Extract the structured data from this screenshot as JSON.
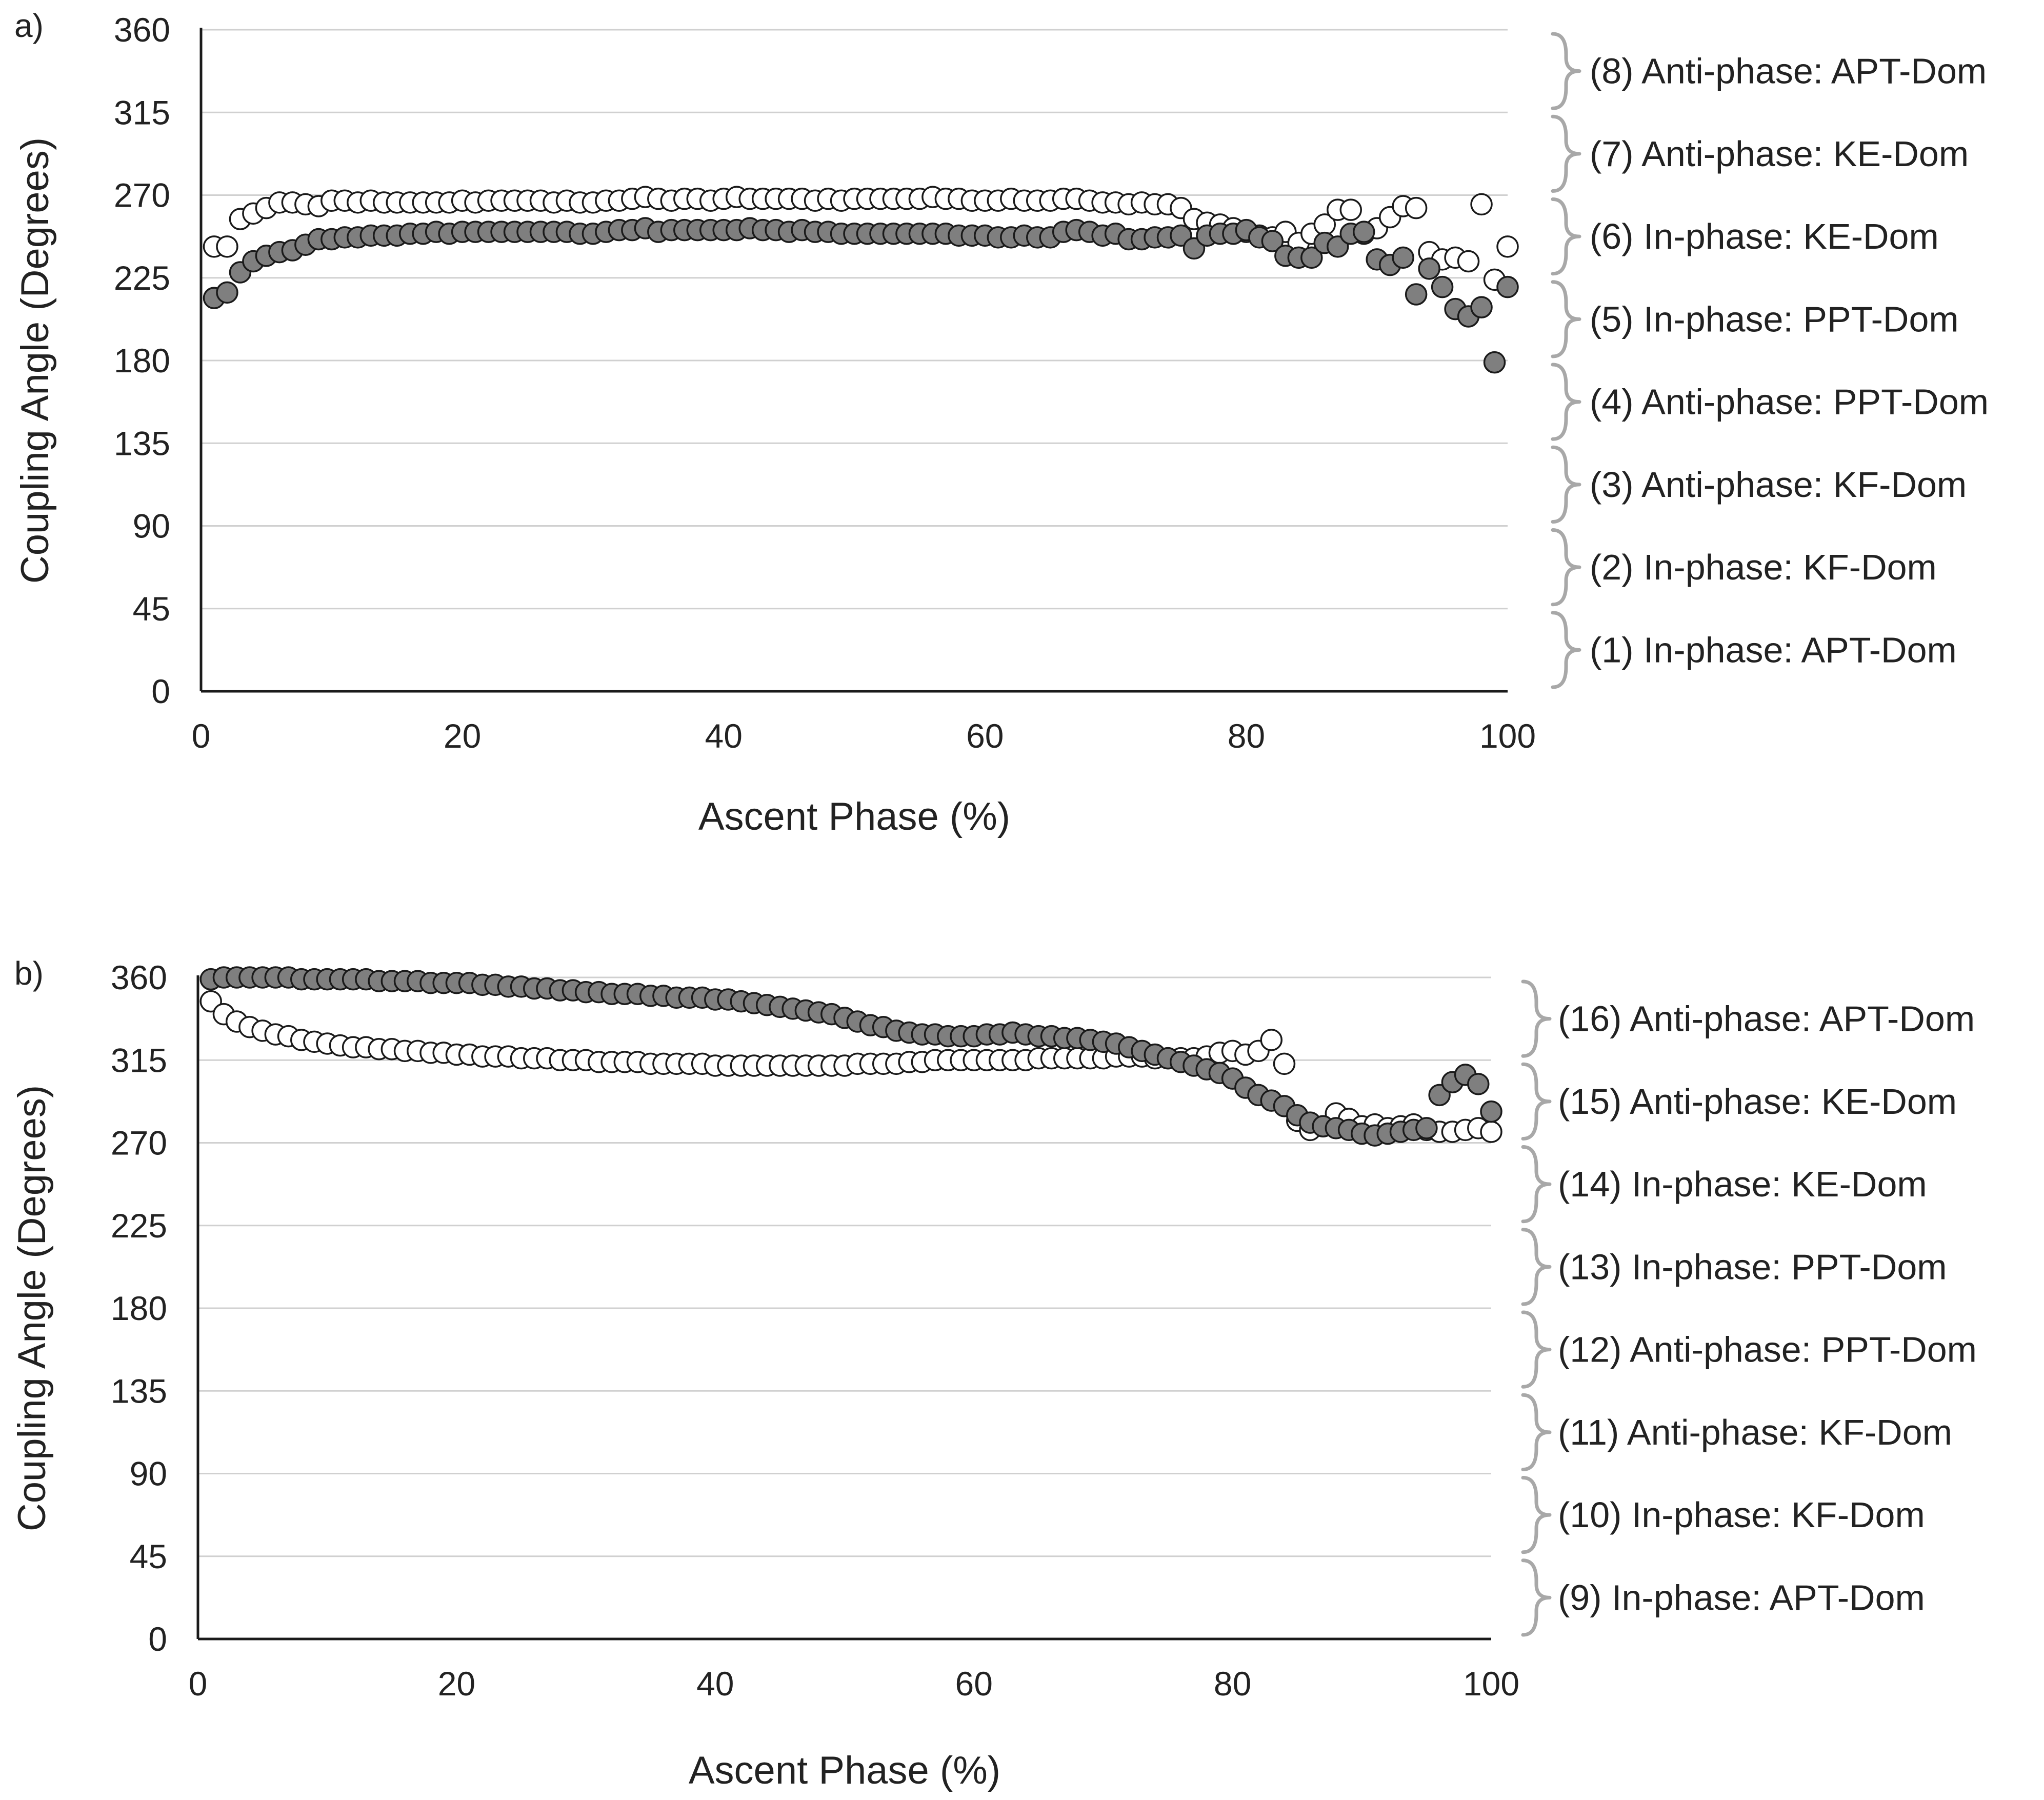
{
  "chart_data": [
    {
      "panel_label": "a)",
      "type": "scatter",
      "title": "",
      "xlabel": "Ascent Phase (%)",
      "ylabel": "Coupling Angle (Degrees)",
      "xlim": [
        0,
        100
      ],
      "ylim": [
        0,
        360
      ],
      "xticks": [
        "0",
        "20",
        "40",
        "60",
        "80",
        "100"
      ],
      "yticks": [
        "0",
        "45",
        "90",
        "135",
        "180",
        "225",
        "270",
        "315",
        "360"
      ],
      "grid": "horizontal",
      "legend": "none",
      "x": [
        1,
        2,
        3,
        4,
        5,
        6,
        7,
        8,
        9,
        10,
        11,
        12,
        13,
        14,
        15,
        16,
        17,
        18,
        19,
        20,
        21,
        22,
        23,
        24,
        25,
        26,
        27,
        28,
        29,
        30,
        31,
        32,
        33,
        34,
        35,
        36,
        37,
        38,
        39,
        40,
        41,
        42,
        43,
        44,
        45,
        46,
        47,
        48,
        49,
        50,
        51,
        52,
        53,
        54,
        55,
        56,
        57,
        58,
        59,
        60,
        61,
        62,
        63,
        64,
        65,
        66,
        67,
        68,
        69,
        70,
        71,
        72,
        73,
        74,
        75,
        76,
        77,
        78,
        79,
        80,
        81,
        82,
        83,
        84,
        85,
        86,
        87,
        88,
        89,
        90,
        91,
        92,
        93,
        94,
        95,
        96,
        97,
        98,
        99,
        100
      ],
      "series": [
        {
          "name": "open circles",
          "marker": "open",
          "values": [
            242,
            242,
            257,
            260,
            263,
            266,
            266,
            265,
            264,
            267,
            267,
            266,
            267,
            266,
            266,
            266,
            266,
            266,
            266,
            267,
            266,
            267,
            267,
            267,
            267,
            267,
            266,
            267,
            266,
            266,
            267,
            267,
            268,
            269,
            268,
            267,
            268,
            268,
            267,
            268,
            269,
            268,
            268,
            268,
            268,
            268,
            267,
            268,
            267,
            268,
            268,
            268,
            268,
            268,
            268,
            269,
            268,
            268,
            267,
            267,
            267,
            268,
            267,
            267,
            267,
            268,
            268,
            267,
            266,
            266,
            265,
            266,
            265,
            265,
            263,
            257,
            255,
            254,
            252,
            250,
            248,
            247,
            250,
            244,
            249,
            254,
            262,
            262,
            249,
            252,
            258,
            264,
            263,
            239,
            235,
            236,
            234,
            265,
            224,
            242
          ]
        },
        {
          "name": "filled circles",
          "marker": "filled",
          "values": [
            214,
            217,
            228,
            234,
            237,
            239,
            240,
            243,
            246,
            246,
            247,
            247,
            248,
            248,
            248,
            249,
            249,
            250,
            249,
            250,
            250,
            250,
            250,
            250,
            250,
            250,
            250,
            250,
            249,
            249,
            250,
            251,
            251,
            252,
            250,
            251,
            251,
            251,
            251,
            251,
            251,
            252,
            251,
            251,
            250,
            251,
            250,
            250,
            249,
            249,
            249,
            249,
            249,
            249,
            249,
            249,
            249,
            248,
            248,
            248,
            247,
            247,
            248,
            247,
            247,
            250,
            251,
            250,
            248,
            249,
            246,
            246,
            247,
            247,
            248,
            241,
            248,
            249,
            249,
            251,
            247,
            245,
            237,
            236,
            236,
            244,
            242,
            249,
            250,
            235,
            232,
            236,
            216,
            230,
            220,
            208,
            204,
            209,
            179,
            220
          ]
        }
      ],
      "zones": [
        "(1) In-phase: APT-Dom",
        "(2) In-phase: KF-Dom",
        "(3) Anti-phase: KF-Dom",
        "(4) Anti-phase: PPT-Dom",
        "(5) In-phase: PPT-Dom",
        "(6) In-phase: KE-Dom",
        "(7) Anti-phase: KE-Dom",
        "(8) Anti-phase: APT-Dom"
      ]
    },
    {
      "panel_label": "b)",
      "type": "scatter",
      "title": "",
      "xlabel": "Ascent Phase (%)",
      "ylabel": "Coupling Angle (Degrees)",
      "xlim": [
        0,
        100
      ],
      "ylim": [
        0,
        360
      ],
      "xticks": [
        "0",
        "20",
        "40",
        "60",
        "80",
        "100"
      ],
      "yticks": [
        "0",
        "45",
        "90",
        "135",
        "180",
        "225",
        "270",
        "315",
        "360"
      ],
      "grid": "horizontal",
      "legend": "none",
      "x": [
        1,
        2,
        3,
        4,
        5,
        6,
        7,
        8,
        9,
        10,
        11,
        12,
        13,
        14,
        15,
        16,
        17,
        18,
        19,
        20,
        21,
        22,
        23,
        24,
        25,
        26,
        27,
        28,
        29,
        30,
        31,
        32,
        33,
        34,
        35,
        36,
        37,
        38,
        39,
        40,
        41,
        42,
        43,
        44,
        45,
        46,
        47,
        48,
        49,
        50,
        51,
        52,
        53,
        54,
        55,
        56,
        57,
        58,
        59,
        60,
        61,
        62,
        63,
        64,
        65,
        66,
        67,
        68,
        69,
        70,
        71,
        72,
        73,
        74,
        75,
        76,
        77,
        78,
        79,
        80,
        81,
        82,
        83,
        84,
        85,
        86,
        87,
        88,
        89,
        90,
        91,
        92,
        93,
        94,
        95,
        96,
        97,
        98,
        99,
        100
      ],
      "series": [
        {
          "name": "open circles",
          "marker": "open",
          "values": [
            347,
            340,
            336,
            333,
            331,
            329,
            328,
            326,
            325,
            324,
            323,
            322,
            322,
            321,
            321,
            320,
            320,
            319,
            319,
            318,
            318,
            317,
            317,
            317,
            316,
            316,
            316,
            315,
            315,
            315,
            314,
            314,
            314,
            314,
            313,
            313,
            313,
            313,
            313,
            312,
            312,
            312,
            312,
            312,
            312,
            312,
            312,
            312,
            312,
            312,
            313,
            313,
            313,
            313,
            314,
            314,
            315,
            315,
            315,
            315,
            315,
            315,
            315,
            315,
            316,
            316,
            316,
            316,
            316,
            316,
            317,
            317,
            317,
            316,
            316,
            316,
            316,
            317,
            319,
            320,
            318,
            320,
            326,
            313,
            282,
            277,
            279,
            286,
            283,
            279,
            280,
            278,
            279,
            280,
            277,
            276,
            276,
            277,
            278,
            276
          ]
        },
        {
          "name": "filled circles",
          "marker": "filled",
          "values": [
            359,
            360,
            360,
            360,
            360,
            360,
            360,
            359,
            359,
            359,
            359,
            359,
            359,
            358,
            358,
            358,
            358,
            357,
            357,
            357,
            357,
            356,
            356,
            355,
            355,
            354,
            354,
            353,
            353,
            352,
            352,
            351,
            351,
            351,
            350,
            350,
            349,
            349,
            349,
            348,
            348,
            347,
            346,
            345,
            344,
            343,
            342,
            341,
            340,
            338,
            336,
            334,
            333,
            331,
            330,
            329,
            329,
            328,
            328,
            328,
            329,
            329,
            330,
            329,
            328,
            328,
            327,
            327,
            326,
            325,
            324,
            322,
            320,
            318,
            316,
            314,
            312,
            310,
            308,
            305,
            300,
            296,
            293,
            290,
            285,
            281,
            279,
            278,
            277,
            275,
            274,
            275,
            276,
            277,
            278,
            296,
            303,
            307,
            302,
            287
          ]
        }
      ],
      "zones": [
        "(9) In-phase: APT-Dom",
        "(10) In-phase: KF-Dom",
        "(11) Anti-phase: KF-Dom",
        "(12) Anti-phase: PPT-Dom",
        "(13) In-phase: PPT-Dom",
        "(14) In-phase: KE-Dom",
        "(15) Anti-phase: KE-Dom",
        "(16) Anti-phase: APT-Dom"
      ]
    }
  ]
}
